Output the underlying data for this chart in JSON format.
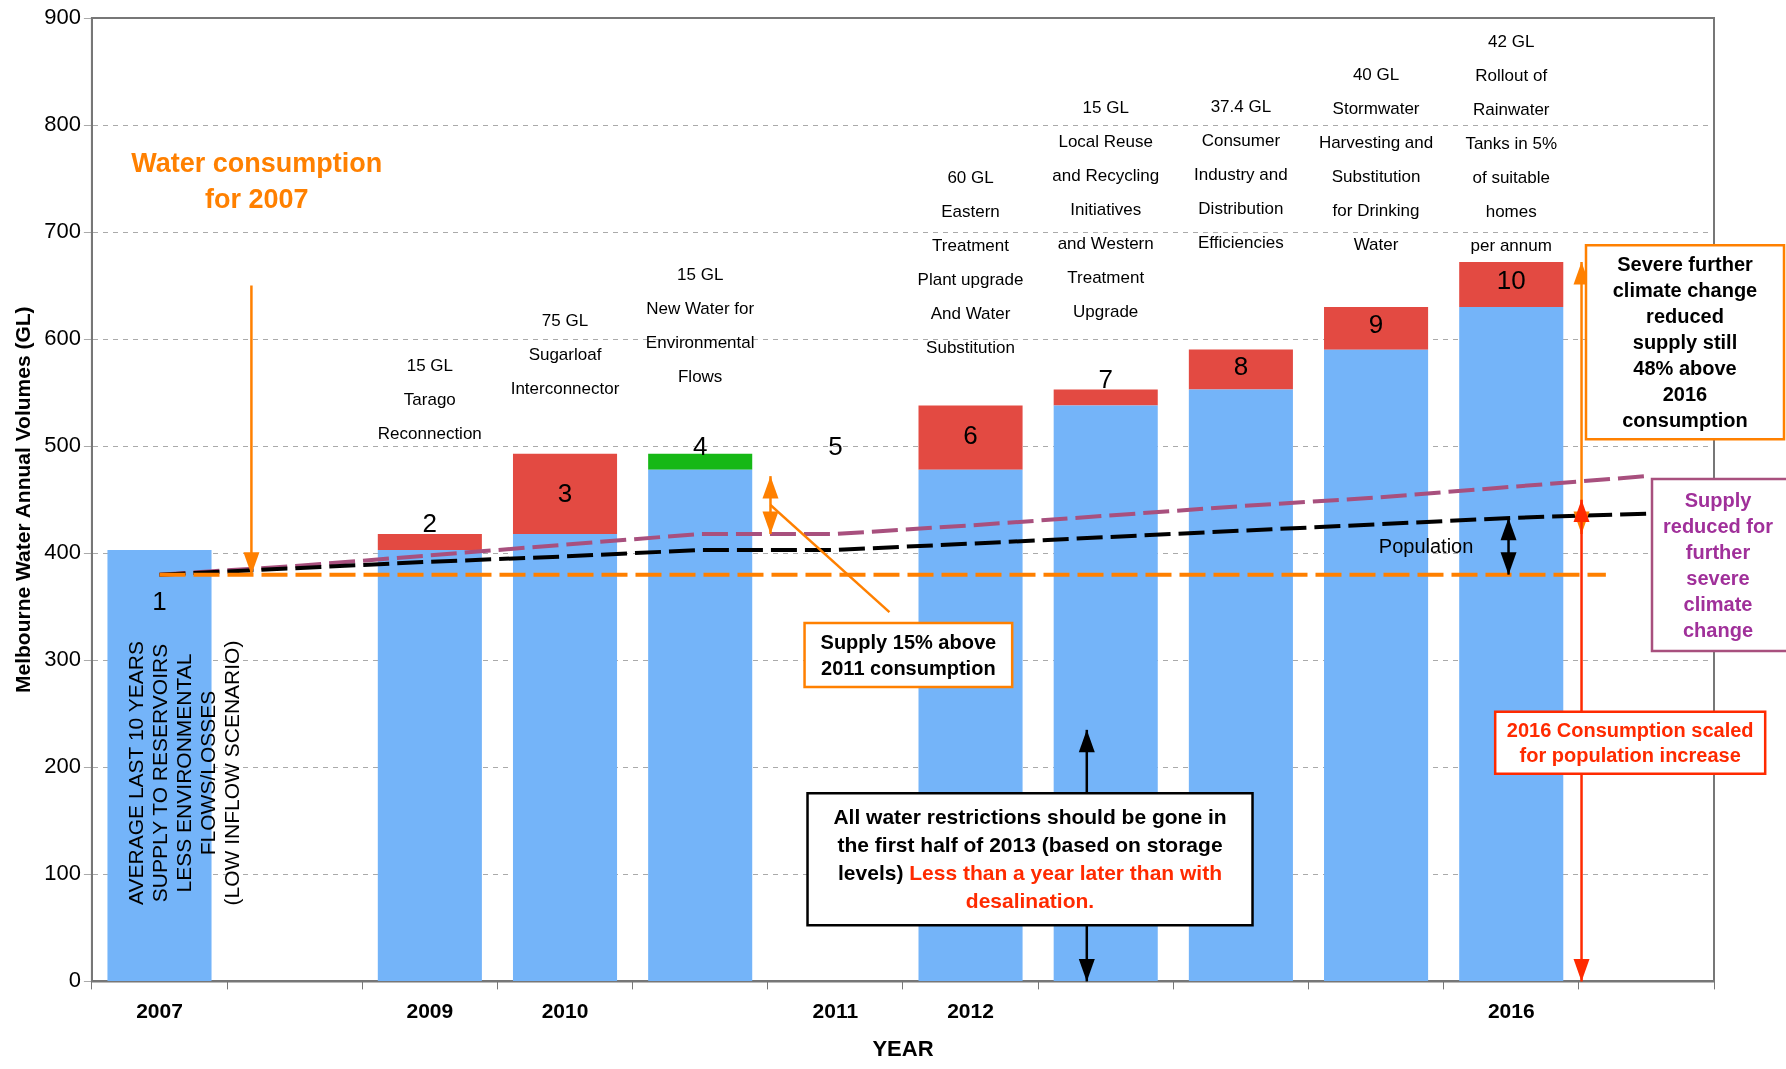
{
  "chart_data": {
    "type": "bar",
    "stacked": true,
    "xlabel": "YEAR",
    "ylabel": "Melbourne Water Annual Volumes (GL)",
    "categories": [
      "2007",
      null,
      "2009",
      "2010",
      null,
      "2011",
      "2012",
      null,
      null,
      null,
      "2016",
      null
    ],
    "series": [
      {
        "color": "#74b4f9",
        "values": [
          403,
          null,
          403,
          418,
          478,
          null,
          478,
          538,
          553,
          590,
          630,
          null
        ]
      },
      {
        "color": "#e34a42",
        "values": [
          null,
          null,
          15,
          75,
          null,
          null,
          60,
          15,
          37.4,
          40,
          42,
          null
        ]
      },
      {
        "color": "#16b816",
        "values": [
          null,
          null,
          null,
          null,
          15,
          null,
          null,
          null,
          null,
          null,
          null,
          null
        ]
      },
      {
        "type": "line",
        "color": "#000000",
        "line_style": "dashed",
        "values": [
          380,
          386,
          392,
          397,
          403,
          403,
          409,
          415,
          421,
          427,
          433,
          437
        ]
      },
      {
        "type": "line",
        "color": "#a8507e",
        "line_style": "dashed",
        "values": [
          380,
          388,
          398,
          408,
          418,
          418,
          426,
          435,
          444,
          452,
          462,
          472
        ]
      }
    ],
    "ylim": [
      0,
      900
    ],
    "yticks": [
      0,
      100,
      200,
      300,
      400,
      500,
      600,
      700,
      800,
      900
    ],
    "grid": "y",
    "marker": "none",
    "ref_lines": [
      {
        "axis": "y",
        "value": 380,
        "label": "Water consumption for 2007",
        "color": "#ff8000",
        "line_style": "dashed"
      }
    ],
    "annotations": [
      "1",
      "AVERAGE LAST 10 YEARS\nSUPPLY TO RESERVOIRS\nLESS ENVIRONMENTAL\nFLOWS/LOSSES\n(LOW INFLOW SCENARIO)",
      "2",
      "15 GL\nTarago\nReconnection",
      "3",
      "75 GL\nSugarloaf\nInterconnector",
      "4",
      "15 GL\nNew Water for\nEnvironmental\nFlows",
      "5",
      "6",
      "60 GL\nEastern\nTreatment\nPlant upgrade\nAnd Water\nSubstitution",
      "7",
      "15 GL\nLocal Reuse\nand Recycling\nInitiatives\nand Western\nTreatment\nUpgrade",
      "8",
      "37.4 GL\nConsumer\nIndustry and\nDistribution\nEfficiencies",
      "9",
      "40 GL\nStormwater\nHarvesting and\nSubstitution\nfor Drinking\nWater",
      "10",
      "42 GL\nRollout of\nRainwater\nTanks in 5%\nof suitable\nhomes\nper annum",
      "Supply 15% above\n2011 consumption",
      "Population",
      "Severe further\nclimate change\nreduced\nsupply still\n48% above\n2016\nconsumption",
      "Supply\nreduced for\nfurther\nsevere\nclimate\nchange",
      "2016 Consumption scaled\nfor population increase",
      "All water restrictions should be gone in the first half of 2013 (based on storage levels)",
      "Less than a year later than with desalination."
    ]
  }
}
